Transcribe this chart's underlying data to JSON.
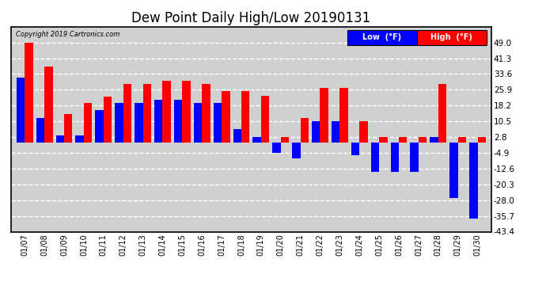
{
  "title": "Dew Point Daily High/Low 20190131",
  "copyright": "Copyright 2019 Cartronics.com",
  "dates": [
    "01/07",
    "01/08",
    "01/09",
    "01/10",
    "01/11",
    "01/12",
    "01/13",
    "01/14",
    "01/15",
    "01/16",
    "01/17",
    "01/18",
    "01/19",
    "01/20",
    "01/21",
    "01/22",
    "01/23",
    "01/24",
    "01/25",
    "01/26",
    "01/27",
    "01/28",
    "01/29",
    "01/30"
  ],
  "high": [
    49.0,
    37.4,
    14.0,
    19.4,
    22.4,
    28.6,
    28.6,
    30.2,
    30.2,
    28.6,
    25.2,
    25.2,
    23.0,
    2.8,
    12.2,
    27.0,
    27.0,
    10.5,
    3.0,
    3.0,
    3.0,
    28.6,
    3.0,
    3.0
  ],
  "low": [
    32.0,
    12.0,
    3.5,
    3.5,
    15.8,
    19.4,
    19.4,
    21.2,
    21.2,
    19.4,
    19.4,
    6.8,
    3.0,
    -4.9,
    -7.5,
    10.5,
    10.5,
    -6.0,
    -14.0,
    -14.0,
    -14.0,
    3.0,
    -27.0,
    -37.0
  ],
  "high_color": "#ff0000",
  "low_color": "#0000ff",
  "bg_color": "#ffffff",
  "plot_bg": "#d0d0d0",
  "grid_color": "#ffffff",
  "ylim_min": -43.4,
  "ylim_max": 56.7,
  "yticks": [
    49.0,
    41.3,
    33.6,
    25.9,
    18.2,
    10.5,
    2.8,
    -4.9,
    -12.6,
    -20.3,
    -28.0,
    -35.7,
    -43.4
  ],
  "title_fontsize": 12,
  "legend_label_low": "Low  (°F)",
  "legend_label_high": "High  (°F)"
}
